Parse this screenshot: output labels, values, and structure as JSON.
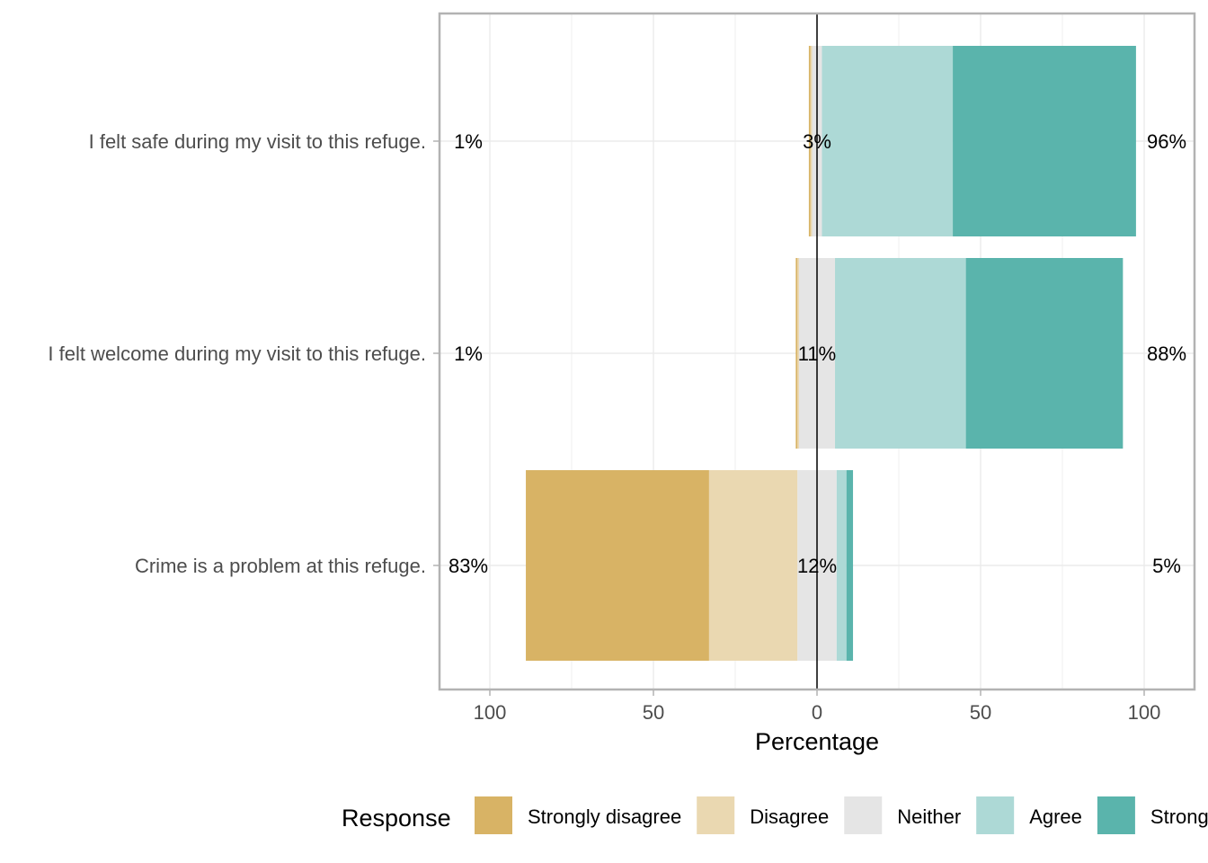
{
  "chart_data": {
    "type": "bar",
    "orientation": "horizontal-diverging",
    "xlabel": "Percentage",
    "xlim": [
      -100,
      100
    ],
    "xticks": [
      -100,
      -50,
      0,
      50,
      100
    ],
    "xtick_labels": [
      "100",
      "50",
      "0",
      "50",
      "100"
    ],
    "grid": true,
    "legend": {
      "title": "Response",
      "position": "bottom",
      "items": [
        {
          "label": "Strongly disagree",
          "color": "#D8B365"
        },
        {
          "label": "Disagree",
          "color": "#EAD8B1"
        },
        {
          "label": "Neither",
          "color": "#E5E5E5"
        },
        {
          "label": "Agree",
          "color": "#ADD9D6"
        },
        {
          "label": "Strongly agree",
          "color": "#5AB4AC"
        }
      ]
    },
    "categories": [
      "I felt safe during my visit to this refuge.",
      "I felt welcome during my visit to this refuge.",
      "Crime is a problem at this refuge."
    ],
    "series": [
      {
        "name": "Strongly disagree",
        "color": "#D8B365",
        "values": [
          0.5,
          0.5,
          56
        ]
      },
      {
        "name": "Disagree",
        "color": "#EAD8B1",
        "values": [
          0.5,
          0.5,
          27
        ]
      },
      {
        "name": "Neither",
        "color": "#E5E5E5",
        "values": [
          3,
          11,
          12
        ]
      },
      {
        "name": "Agree",
        "color": "#ADD9D6",
        "values": [
          40,
          40,
          3
        ]
      },
      {
        "name": "Strongly agree",
        "color": "#5AB4AC",
        "values": [
          56,
          48,
          2
        ]
      }
    ],
    "left_labels": [
      "1%",
      "1%",
      "83%"
    ],
    "center_labels": [
      "3%",
      "11%",
      "12%"
    ],
    "right_labels": [
      "96%",
      "88%",
      "5%"
    ]
  }
}
